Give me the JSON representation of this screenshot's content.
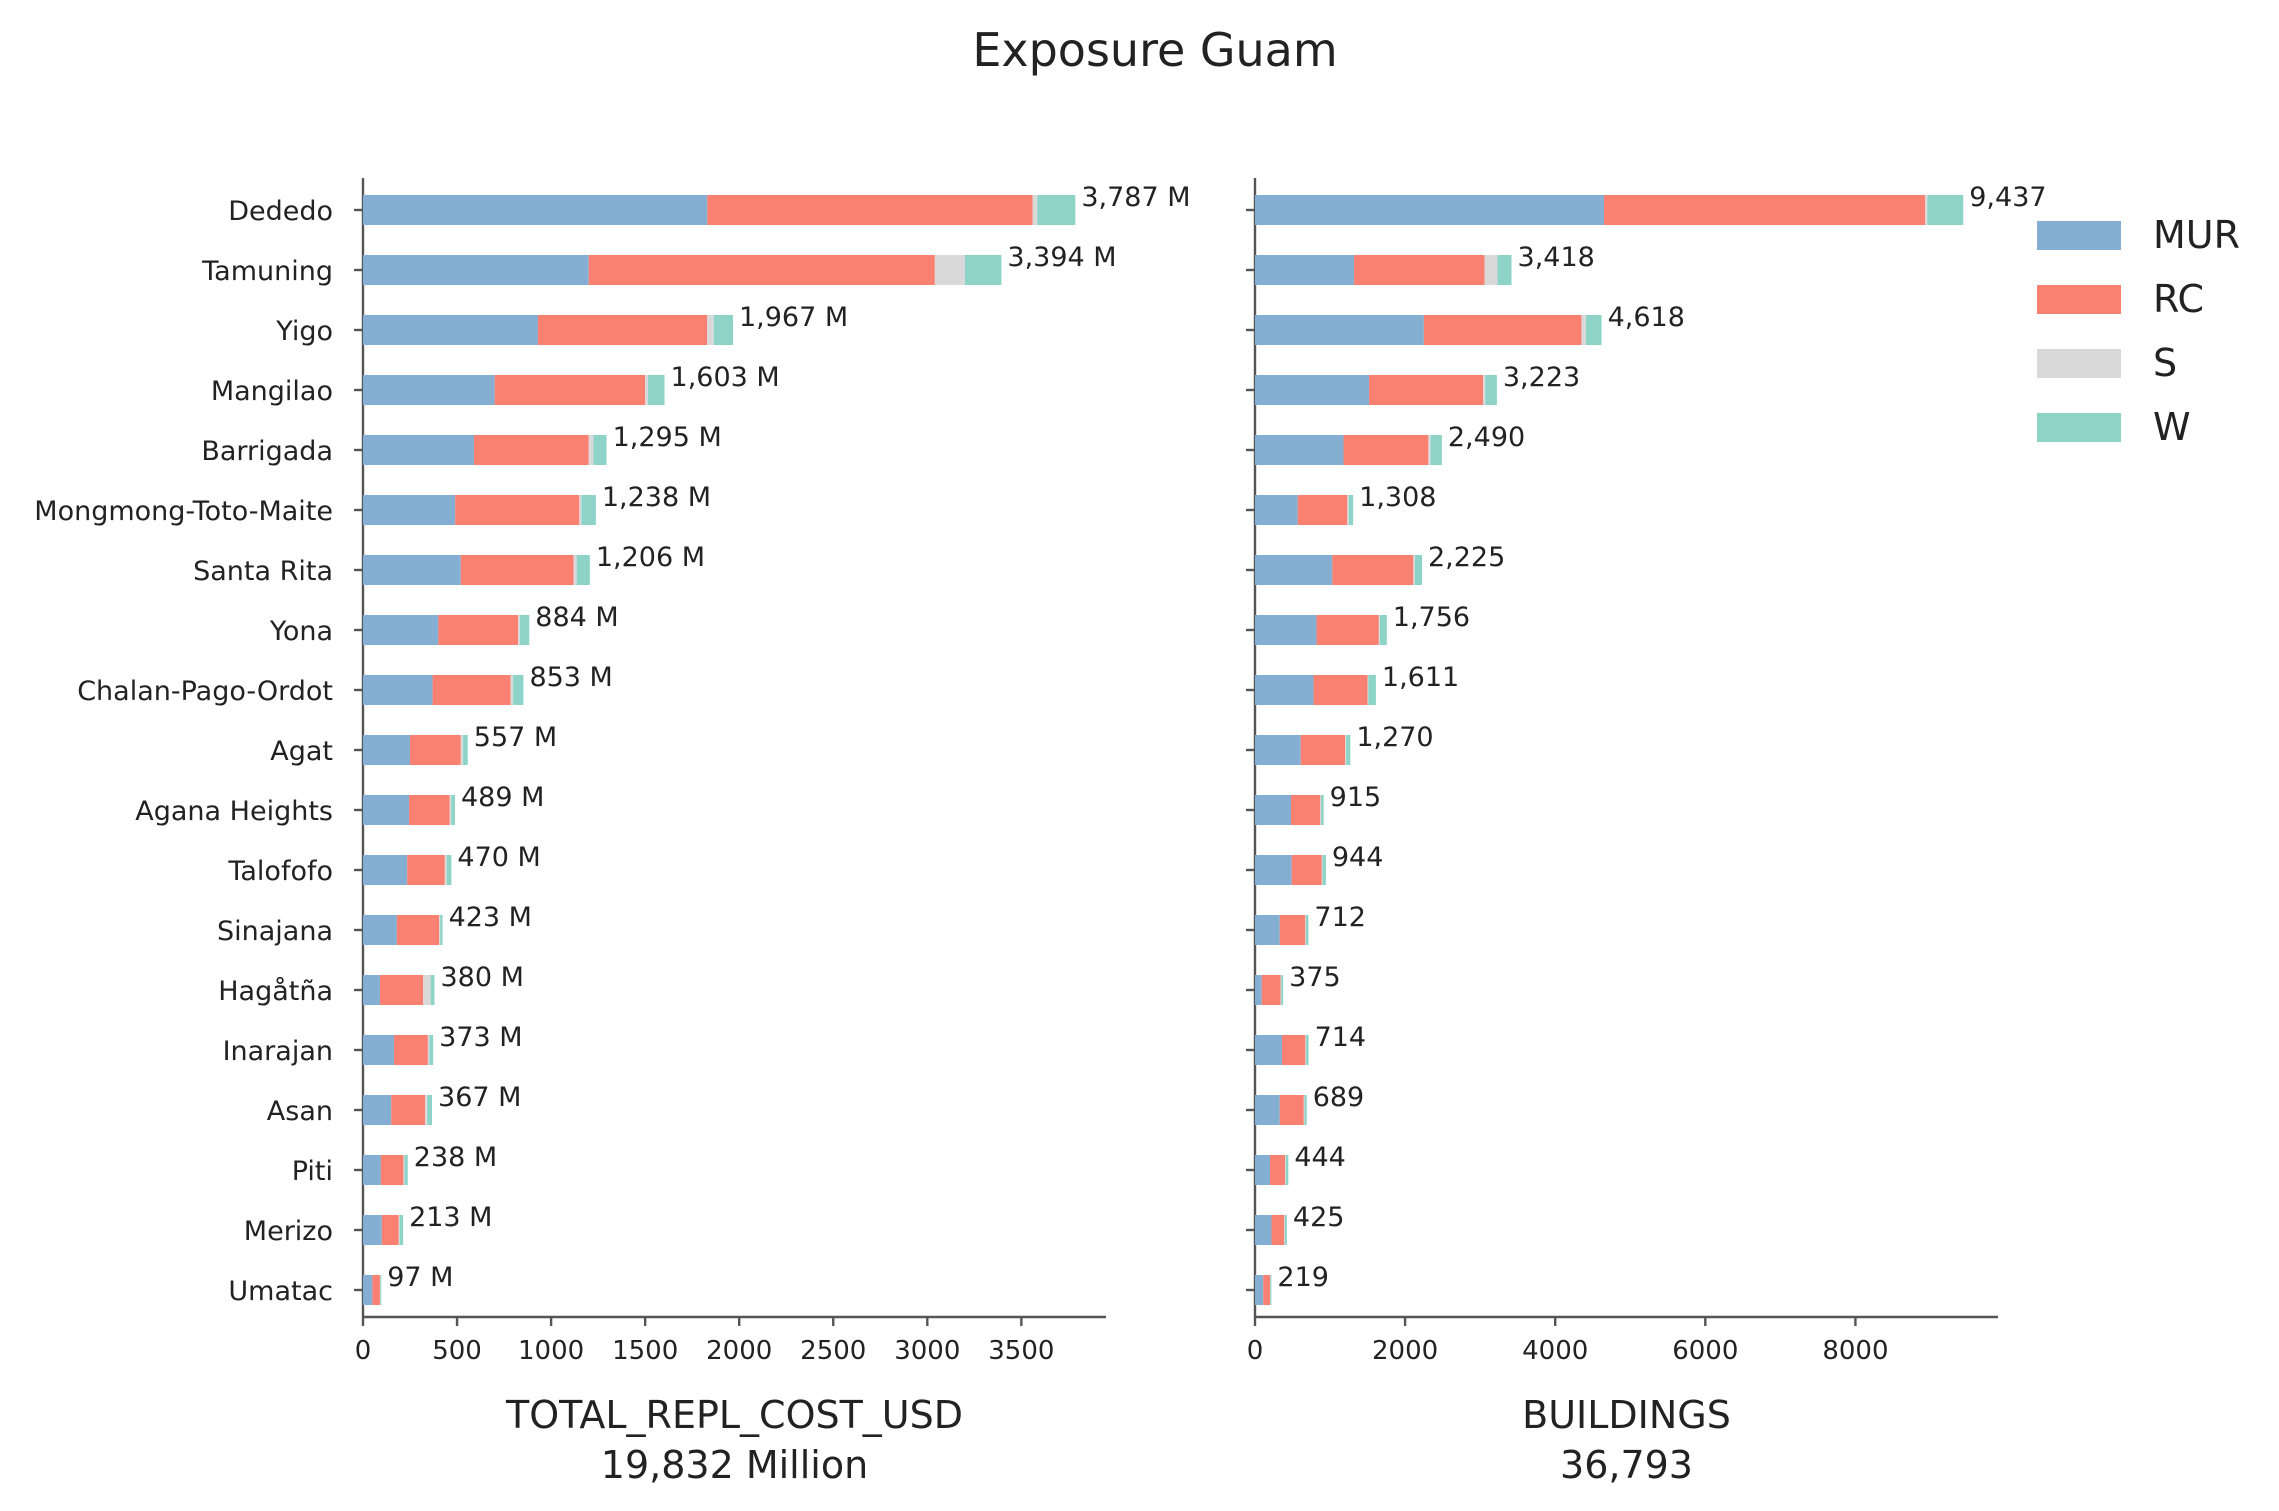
{
  "chart_data": {
    "type": "bar",
    "title": "Exposure Guam",
    "colors": {
      "MUR": "#84afd2",
      "RC": "#fa8072",
      "S": "#d9d9d9",
      "W": "#8dd3c7"
    },
    "legend": {
      "position": "right",
      "entries": [
        "MUR",
        "RC",
        "S",
        "W"
      ]
    },
    "categories": [
      "Dededo",
      "Tamuning",
      "Yigo",
      "Mangilao",
      "Barrigada",
      "Mongmong-Toto-Maite",
      "Santa Rita",
      "Yona",
      "Chalan-Pago-Ordot",
      "Agat",
      "Agana Heights",
      "Talofofo",
      "Sinajana",
      "Hagåtña",
      "Inarajan",
      "Asan",
      "Piti",
      "Merizo",
      "Umatac"
    ],
    "panels": [
      {
        "xlabel": "TOTAL_REPL_COST_USD",
        "xlabel_sub": "19,832 Million",
        "xlim": [
          0,
          3950
        ],
        "xticks": [
          0,
          500,
          1000,
          1500,
          2000,
          2500,
          3000,
          3500
        ],
        "series": [
          {
            "name": "MUR",
            "values": [
              1830,
              1200,
              930,
              700,
              590,
              490,
              520,
              400,
              370,
              250,
              245,
              235,
              180,
              90,
              165,
              150,
              95,
              100,
              50
            ]
          },
          {
            "name": "RC",
            "values": [
              1730,
              1840,
              900,
              800,
              610,
              660,
              600,
              425,
              415,
              270,
              215,
              200,
              225,
              230,
              180,
              180,
              120,
              90,
              40
            ]
          },
          {
            "name": "S",
            "values": [
              25,
              160,
              35,
              15,
              25,
              12,
              16,
              9,
              13,
              12,
              9,
              10,
              5,
              40,
              8,
              12,
              6,
              5,
              2
            ]
          },
          {
            "name": "W",
            "values": [
              202,
              194,
              102,
              88,
              70,
              76,
              70,
              50,
              55,
              25,
              20,
              25,
              13,
              20,
              20,
              25,
              17,
              18,
              5
            ]
          }
        ],
        "total_labels": [
          "3,787 M",
          "3,394 M",
          "1,967 M",
          "1,603 M",
          "1,295 M",
          "1,238 M",
          "1,206 M",
          "884 M",
          "853 M",
          "557 M",
          "489 M",
          "470 M",
          "423 M",
          "380 M",
          "373 M",
          "367 M",
          "238 M",
          "213 M",
          "97 M"
        ]
      },
      {
        "xlabel": "BUILDINGS",
        "xlabel_sub": "36,793",
        "xlim": [
          0,
          9900
        ],
        "xticks": [
          0,
          2000,
          4000,
          6000,
          8000
        ],
        "series": [
          {
            "name": "MUR",
            "values": [
              4650,
              1320,
              2250,
              1520,
              1180,
              570,
              1030,
              820,
              780,
              610,
              480,
              490,
              330,
              90,
              360,
              330,
              200,
              220,
              110
            ]
          },
          {
            "name": "RC",
            "values": [
              4280,
              1740,
              2100,
              1520,
              1130,
              660,
              1080,
              830,
              720,
              590,
              390,
              400,
              340,
              250,
              310,
              320,
              200,
              170,
              90
            ]
          },
          {
            "name": "S",
            "values": [
              30,
              170,
              60,
              30,
              30,
              20,
              20,
              15,
              10,
              15,
              10,
              10,
              10,
              10,
              10,
              10,
              10,
              10,
              5
            ]
          },
          {
            "name": "W",
            "values": [
              477,
              188,
              208,
              153,
              150,
              58,
              95,
              91,
              101,
              55,
              35,
              44,
              32,
              25,
              34,
              29,
              34,
              25,
              14
            ]
          }
        ],
        "total_labels": [
          "9,437",
          "3,418",
          "4,618",
          "3,223",
          "2,490",
          "1,308",
          "2,225",
          "1,756",
          "1,611",
          "1,270",
          "915",
          "944",
          "712",
          "375",
          "714",
          "689",
          "444",
          "425",
          "219"
        ]
      }
    ]
  }
}
